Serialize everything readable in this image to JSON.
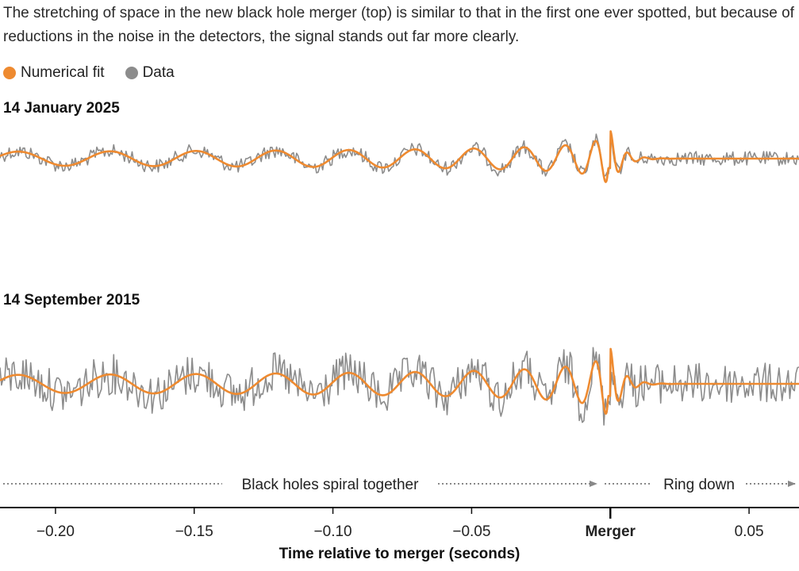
{
  "subtitle": "The stretching of space in the new black hole merger (top) is similar to that in the first one ever spotted, but because of reductions in the noise in the detectors, the signal stands out far more clearly.",
  "colors": {
    "fit": "#ee8a30",
    "data": "#8c8c8c",
    "axis": "#111111"
  },
  "chart_data": {
    "type": "line",
    "legend": [
      {
        "name": "Numerical fit",
        "color": "#ee8a30"
      },
      {
        "name": "Data",
        "color": "#8c8c8c"
      }
    ],
    "panels": [
      {
        "title": "14 January 2025",
        "noise": "low"
      },
      {
        "title": "14 September 2015",
        "noise": "high"
      }
    ],
    "xlabel": "Time relative to merger (seconds)",
    "xlim": [
      -0.22,
      0.068
    ],
    "xticks": [
      {
        "value": -0.2,
        "label": "−0.20",
        "bold": false
      },
      {
        "value": -0.15,
        "label": "−0.15",
        "bold": false
      },
      {
        "value": -0.1,
        "label": "−0.10",
        "bold": false
      },
      {
        "value": -0.05,
        "label": "−0.05",
        "bold": false
      },
      {
        "value": 0,
        "label": "Merger",
        "bold": true
      },
      {
        "value": 0.05,
        "label": "0.05",
        "bold": false
      }
    ],
    "phases": [
      {
        "label": "Black holes spiral together",
        "from": -0.22,
        "to": 0
      },
      {
        "label": "Ring down",
        "from": 0,
        "to": 0.068
      }
    ],
    "grid": false
  }
}
